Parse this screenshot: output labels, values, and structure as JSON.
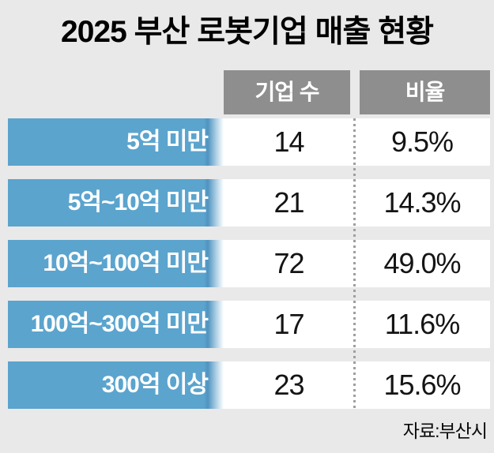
{
  "title": "2025 부산 로봇기업 매출 현황",
  "table": {
    "columns": [
      "기업 수",
      "비율"
    ],
    "rows": [
      {
        "label": "5억 미만",
        "count": "14",
        "ratio": "9.5%"
      },
      {
        "label": "5억~10억 미만",
        "count": "21",
        "ratio": "14.3%"
      },
      {
        "label": "10억~100억 미만",
        "count": "72",
        "ratio": "49.0%"
      },
      {
        "label": "100억~300억 미만",
        "count": "17",
        "ratio": "11.6%"
      },
      {
        "label": "300억 이상",
        "count": "23",
        "ratio": "15.6%"
      }
    ]
  },
  "source": "자료:부산시",
  "colors": {
    "background": "#e9e9e9",
    "header_gray": "#8e8e8e",
    "row_label_blue": "#5ba4ce",
    "cell_white": "#ffffff",
    "divider_dot_gray": "#9f9f9f",
    "text_black": "#000000",
    "text_white": "#ffffff"
  },
  "chart_data": {
    "type": "table",
    "title": "2025 부산 로봇기업 매출 현황",
    "categories": [
      "5억 미만",
      "5억~10억 미만",
      "10억~100억 미만",
      "100억~300억 미만",
      "300억 이상"
    ],
    "series": [
      {
        "name": "기업 수",
        "values": [
          14,
          21,
          72,
          17,
          23
        ]
      },
      {
        "name": "비율",
        "unit": "%",
        "values": [
          9.5,
          14.3,
          49.0,
          11.6,
          15.6
        ]
      }
    ],
    "source": "자료:부산시",
    "layout": "rows are revenue brackets (blue header cells on left), two data columns separated by vertical dotted line"
  }
}
